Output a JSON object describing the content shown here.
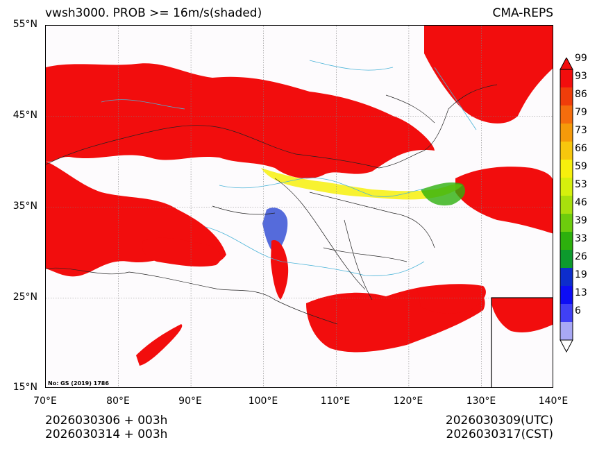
{
  "header": {
    "title": "vwsh3000. PROB >= 16m/s(shaded)",
    "model": "CMA-REPS"
  },
  "map": {
    "lat_labels": [
      "55°N",
      "45°N",
      "35°N",
      "25°N",
      "15°N"
    ],
    "lon_labels": [
      "70°E",
      "80°E",
      "90°E",
      "100°E",
      "110°E",
      "120°E",
      "130°E",
      "140°E"
    ],
    "review_number": "No: GS (2019) 1786",
    "colors": {
      "prob_high": "#f20d0d",
      "land_background": "#fdfbfd",
      "border": "#222222",
      "river": "#4bb4d8"
    }
  },
  "colorbar": {
    "labels": [
      "99",
      "93",
      "86",
      "79",
      "73",
      "66",
      "59",
      "53",
      "46",
      "39",
      "33",
      "26",
      "19",
      "13",
      "6"
    ],
    "colors": [
      "#f20d0d",
      "#f03d0a",
      "#f56d0d",
      "#f59a0a",
      "#f7c70d",
      "#f7f00d",
      "#d6f00d",
      "#a8e00d",
      "#6dcc0d",
      "#2db00d",
      "#0d9a2d",
      "#0d2dcc",
      "#0d0df5",
      "#4040f5",
      "#a8a8f5"
    ]
  },
  "footer": {
    "init_utc": "2026030306  +  003h",
    "init_cst": "2026030314  +  003h",
    "valid_utc": "2026030309(UTC)",
    "valid_cst": "2026030317(CST)"
  }
}
